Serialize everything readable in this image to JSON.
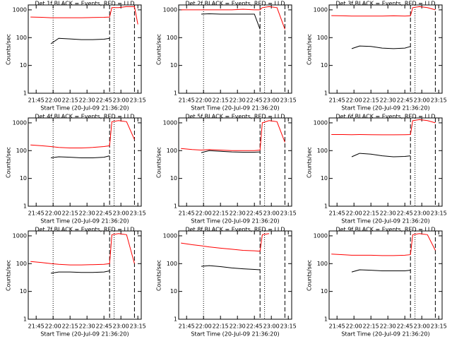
{
  "chart_data": [
    {
      "type": "line",
      "title": "Det 1f BLACK = Events, RED = LLD",
      "xlabel": "Start Time (20-Jul-09 21:36:20)",
      "ylabel": "Counts/sec",
      "x": [
        "21:40",
        "21:50",
        "21:58",
        "22:05",
        "22:15",
        "22:25",
        "22:35",
        "22:45",
        "22:50",
        "22:52",
        "22:58",
        "23:05",
        "23:12",
        "23:15"
      ],
      "series": [
        {
          "color": "#ff0000",
          "values": [
            550,
            540,
            520,
            520,
            520,
            520,
            530,
            540,
            550,
            1200,
            1200,
            1300,
            1300,
            300
          ]
        },
        {
          "color": "#000000",
          "values": [
            null,
            null,
            60,
            95,
            90,
            85,
            85,
            88,
            95,
            null,
            null,
            null,
            null,
            null
          ]
        }
      ],
      "xlim": [
        "21:38",
        "23:18"
      ],
      "xticks": [
        "21:45",
        "22:00",
        "22:15",
        "22:30",
        "22:45",
        "23:00",
        "23:15"
      ],
      "ylim": [
        1,
        1500
      ],
      "yticks": [
        1,
        10,
        100,
        1000
      ],
      "log_y": true,
      "vlines": [
        {
          "x": "22:00",
          "style": "dotted"
        },
        {
          "x": "22:50",
          "style": "dashed"
        },
        {
          "x": "22:54",
          "style": "dotted"
        },
        {
          "x": "23:12",
          "style": "dashed"
        }
      ]
    },
    {
      "type": "line",
      "title": "Det 2f BLACK = Events, RED = LLD",
      "xlabel": "Start Time (20-Jul-09 21:36:20)",
      "ylabel": "Counts/sec",
      "x": [
        "21:40",
        "21:50",
        "21:58",
        "22:05",
        "22:15",
        "22:25",
        "22:35",
        "22:45",
        "22:50",
        "22:52",
        "22:58",
        "23:05",
        "23:12",
        "23:15"
      ],
      "series": [
        {
          "color": "#ff0000",
          "values": [
            1000,
            1000,
            1000,
            1000,
            1000,
            1000,
            1050,
            1000,
            1000,
            1200,
            1300,
            1200,
            200,
            null
          ]
        },
        {
          "color": "#000000",
          "values": [
            null,
            null,
            700,
            720,
            700,
            700,
            700,
            700,
            200,
            null,
            null,
            null,
            null,
            null
          ]
        }
      ],
      "xlim": [
        "21:38",
        "23:18"
      ],
      "xticks": [
        "21:45",
        "22:00",
        "22:15",
        "22:30",
        "22:45",
        "23:00",
        "23:15"
      ],
      "ylim": [
        1,
        1500
      ],
      "yticks": [
        1,
        10,
        100,
        1000
      ],
      "log_y": true,
      "vlines": [
        {
          "x": "22:00",
          "style": "dotted"
        },
        {
          "x": "22:50",
          "style": "dashed"
        },
        {
          "x": "22:54",
          "style": "dotted"
        },
        {
          "x": "23:12",
          "style": "dashed"
        }
      ]
    },
    {
      "type": "line",
      "title": "Det 3f BLACK = Events, RED = LLD",
      "xlabel": "Start Time (20-Jul-09 21:36:20)",
      "ylabel": "Counts/sec",
      "x": [
        "21:40",
        "21:50",
        "21:58",
        "22:05",
        "22:15",
        "22:25",
        "22:35",
        "22:45",
        "22:50",
        "22:52",
        "22:58",
        "23:05",
        "23:12",
        "23:15"
      ],
      "series": [
        {
          "color": "#ff0000",
          "values": [
            620,
            610,
            600,
            600,
            600,
            600,
            610,
            600,
            610,
            1200,
            1300,
            1200,
            1000,
            null
          ]
        },
        {
          "color": "#000000",
          "values": [
            null,
            null,
            40,
            50,
            48,
            42,
            40,
            42,
            48,
            null,
            null,
            null,
            null,
            null
          ]
        }
      ],
      "xlim": [
        "21:38",
        "23:18"
      ],
      "xticks": [
        "21:45",
        "22:00",
        "22:15",
        "22:30",
        "22:45",
        "23:00",
        "23:15"
      ],
      "ylim": [
        1,
        1500
      ],
      "yticks": [
        1,
        10,
        100,
        1000
      ],
      "log_y": true,
      "vlines": [
        {
          "x": "22:50",
          "style": "dashed"
        },
        {
          "x": "22:54",
          "style": "dotted"
        },
        {
          "x": "23:12",
          "style": "dashed"
        }
      ]
    },
    {
      "type": "line",
      "title": "Det 4f BLACK = Events, RED = LLD",
      "xlabel": "Start Time (20-Jul-09 21:36:20)",
      "ylabel": "Counts/sec",
      "x": [
        "21:40",
        "21:50",
        "21:58",
        "22:05",
        "22:15",
        "22:25",
        "22:35",
        "22:45",
        "22:50",
        "22:52",
        "22:58",
        "23:05",
        "23:12",
        "23:15"
      ],
      "series": [
        {
          "color": "#ff0000",
          "values": [
            160,
            150,
            140,
            130,
            125,
            125,
            130,
            140,
            150,
            1100,
            1200,
            1100,
            250,
            null
          ]
        },
        {
          "color": "#000000",
          "values": [
            null,
            null,
            55,
            60,
            58,
            55,
            55,
            58,
            65,
            null,
            null,
            null,
            null,
            null
          ]
        }
      ],
      "xlim": [
        "21:38",
        "23:18"
      ],
      "xticks": [
        "21:45",
        "22:00",
        "22:15",
        "22:30",
        "22:45",
        "23:00",
        "23:15"
      ],
      "ylim": [
        1,
        1500
      ],
      "yticks": [
        1,
        10,
        100,
        1000
      ],
      "log_y": true,
      "vlines": [
        {
          "x": "22:00",
          "style": "dotted"
        },
        {
          "x": "22:50",
          "style": "dashed"
        },
        {
          "x": "22:54",
          "style": "dotted"
        },
        {
          "x": "23:12",
          "style": "dashed"
        }
      ]
    },
    {
      "type": "line",
      "title": "Det 5f BLACK = Events, RED = LLD",
      "xlabel": "Start Time (20-Jul-09 21:36:20)",
      "ylabel": "Counts/sec",
      "x": [
        "21:40",
        "21:50",
        "21:58",
        "22:05",
        "22:15",
        "22:25",
        "22:35",
        "22:45",
        "22:50",
        "22:52",
        "22:58",
        "23:05",
        "23:12",
        "23:15"
      ],
      "series": [
        {
          "color": "#ff0000",
          "values": [
            120,
            110,
            105,
            110,
            105,
            100,
            100,
            100,
            105,
            1000,
            1200,
            1100,
            200,
            null
          ]
        },
        {
          "color": "#000000",
          "values": [
            null,
            null,
            85,
            100,
            95,
            90,
            88,
            88,
            90,
            null,
            null,
            null,
            null,
            null
          ]
        }
      ],
      "xlim": [
        "21:38",
        "23:18"
      ],
      "xticks": [
        "21:45",
        "22:00",
        "22:15",
        "22:30",
        "22:45",
        "23:00",
        "23:15"
      ],
      "ylim": [
        1,
        1500
      ],
      "yticks": [
        1,
        10,
        100,
        1000
      ],
      "log_y": true,
      "vlines": [
        {
          "x": "22:00",
          "style": "dotted"
        },
        {
          "x": "22:50",
          "style": "dashed"
        },
        {
          "x": "22:54",
          "style": "dotted"
        },
        {
          "x": "23:12",
          "style": "dashed"
        }
      ]
    },
    {
      "type": "line",
      "title": "Det 6f BLACK = Events, RED = LLD",
      "xlabel": "Start Time (20-Jul-09 21:36:20)",
      "ylabel": "Counts/sec",
      "x": [
        "21:40",
        "21:50",
        "21:58",
        "22:05",
        "22:15",
        "22:25",
        "22:35",
        "22:45",
        "22:50",
        "22:52",
        "22:58",
        "23:05",
        "23:12",
        "23:15"
      ],
      "series": [
        {
          "color": "#ff0000",
          "values": [
            380,
            380,
            375,
            380,
            375,
            370,
            370,
            375,
            380,
            1200,
            1300,
            1200,
            1000,
            null
          ]
        },
        {
          "color": "#000000",
          "values": [
            null,
            null,
            60,
            80,
            75,
            65,
            60,
            62,
            65,
            null,
            null,
            null,
            null,
            null
          ]
        }
      ],
      "xlim": [
        "21:38",
        "23:18"
      ],
      "xticks": [
        "21:45",
        "22:00",
        "22:15",
        "22:30",
        "22:45",
        "23:00",
        "23:15"
      ],
      "ylim": [
        1,
        1500
      ],
      "yticks": [
        1,
        10,
        100,
        1000
      ],
      "log_y": true,
      "vlines": [
        {
          "x": "22:50",
          "style": "dashed"
        },
        {
          "x": "22:54",
          "style": "dotted"
        },
        {
          "x": "23:12",
          "style": "dashed"
        }
      ]
    },
    {
      "type": "line",
      "title": "Det 7f BLACK = Events, RED = LLD",
      "xlabel": "Start Time (20-Jul-09 21:36:20)",
      "ylabel": "Counts/sec",
      "x": [
        "21:40",
        "21:50",
        "21:58",
        "22:05",
        "22:15",
        "22:25",
        "22:35",
        "22:45",
        "22:50",
        "22:52",
        "22:58",
        "23:05",
        "23:12",
        "23:15"
      ],
      "series": [
        {
          "color": "#ff0000",
          "values": [
            120,
            110,
            100,
            95,
            90,
            90,
            92,
            95,
            100,
            1100,
            1200,
            1100,
            100,
            null
          ]
        },
        {
          "color": "#000000",
          "values": [
            null,
            null,
            45,
            50,
            50,
            48,
            48,
            50,
            55,
            null,
            null,
            null,
            null,
            null
          ]
        }
      ],
      "xlim": [
        "21:38",
        "23:18"
      ],
      "xticks": [
        "21:45",
        "22:00",
        "22:15",
        "22:30",
        "22:45",
        "23:00",
        "23:15"
      ],
      "ylim": [
        1,
        1500
      ],
      "yticks": [
        1,
        10,
        100,
        1000
      ],
      "log_y": true,
      "vlines": [
        {
          "x": "22:00",
          "style": "dotted"
        },
        {
          "x": "22:50",
          "style": "dashed"
        },
        {
          "x": "22:54",
          "style": "dotted"
        },
        {
          "x": "23:12",
          "style": "dashed"
        }
      ]
    },
    {
      "type": "line",
      "title": "Det 8f BLACK = Events, RED = LLD",
      "xlabel": "Start Time (20-Jul-09 21:36:20)",
      "ylabel": "Counts/sec",
      "x": [
        "21:40",
        "21:50",
        "21:58",
        "22:05",
        "22:15",
        "22:25",
        "22:35",
        "22:45",
        "22:50",
        "22:52",
        "22:58",
        "23:05",
        "23:12",
        "23:15"
      ],
      "series": [
        {
          "color": "#ff0000",
          "values": [
            550,
            480,
            440,
            400,
            360,
            330,
            300,
            290,
            280,
            1100,
            1200,
            null,
            null,
            null
          ]
        },
        {
          "color": "#000000",
          "values": [
            null,
            null,
            80,
            85,
            78,
            70,
            65,
            62,
            60,
            null,
            null,
            null,
            null,
            null
          ]
        }
      ],
      "xlim": [
        "21:38",
        "23:18"
      ],
      "xticks": [
        "21:45",
        "22:00",
        "22:15",
        "22:30",
        "22:45",
        "23:00",
        "23:15"
      ],
      "ylim": [
        1,
        1500
      ],
      "yticks": [
        1,
        10,
        100,
        1000
      ],
      "log_y": true,
      "vlines": [
        {
          "x": "22:00",
          "style": "dotted"
        },
        {
          "x": "22:50",
          "style": "dashed"
        },
        {
          "x": "22:54",
          "style": "dotted"
        },
        {
          "x": "23:12",
          "style": "dashed"
        }
      ]
    },
    {
      "type": "line",
      "title": "Det 9f BLACK = Events, RED = LLD",
      "xlabel": "Start Time (20-Jul-09 21:36:20)",
      "ylabel": "Counts/sec",
      "x": [
        "21:40",
        "21:50",
        "21:58",
        "22:05",
        "22:15",
        "22:25",
        "22:35",
        "22:45",
        "22:50",
        "22:52",
        "22:58",
        "23:05",
        "23:12",
        "23:15"
      ],
      "series": [
        {
          "color": "#ff0000",
          "values": [
            220,
            210,
            200,
            200,
            200,
            195,
            195,
            200,
            210,
            1100,
            1200,
            1100,
            300,
            null
          ]
        },
        {
          "color": "#000000",
          "values": [
            null,
            null,
            50,
            60,
            58,
            55,
            55,
            55,
            58,
            null,
            null,
            null,
            null,
            null
          ]
        }
      ],
      "xlim": [
        "21:38",
        "23:18"
      ],
      "xticks": [
        "21:45",
        "22:00",
        "22:15",
        "22:30",
        "22:45",
        "23:00",
        "23:15"
      ],
      "ylim": [
        1,
        1500
      ],
      "yticks": [
        1,
        10,
        100,
        1000
      ],
      "log_y": true,
      "vlines": [
        {
          "x": "22:50",
          "style": "dashed"
        },
        {
          "x": "22:54",
          "style": "dotted"
        },
        {
          "x": "23:12",
          "style": "dashed"
        }
      ]
    }
  ]
}
